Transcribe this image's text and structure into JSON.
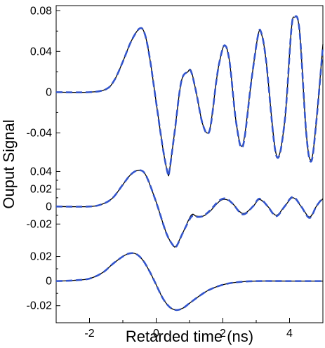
{
  "chart_data": {
    "type": "line",
    "xlabel": "Retarded time (ns)",
    "ylabel": "Ouput Signal",
    "xlim": [
      -3.0,
      5.0
    ],
    "x_ticks": [
      -2,
      0,
      2,
      4
    ],
    "x_tick_labels": [
      "-2",
      "0",
      "2",
      "4"
    ],
    "grid": false,
    "legend": "none",
    "line_styles": {
      "solid": {
        "color": "#000000",
        "dash": "none"
      },
      "dashed": {
        "color": "#3355cc",
        "dash": "dashed"
      }
    },
    "panels": [
      {
        "id": "top",
        "ylim": [
          -0.09,
          0.085
        ],
        "y_ticks": [
          0.08,
          0.04,
          0,
          -0.04
        ],
        "y_tick_labels": [
          "0.08",
          "0.04",
          "0",
          "-0.04"
        ],
        "series": [
          {
            "style": "solid",
            "x": [
              -3.0,
              -2.0,
              -1.5,
              -1.25,
              -1.0,
              -0.75,
              -0.5,
              -0.35,
              -0.2,
              0.0,
              0.2,
              0.35,
              0.4,
              0.55,
              0.75,
              0.95,
              1.05,
              1.2,
              1.4,
              1.6,
              1.8,
              1.9,
              2.05,
              2.2,
              2.4,
              2.6,
              2.85,
              3.05,
              3.15,
              3.3,
              3.6,
              3.85,
              4.05,
              4.15,
              4.3,
              4.5,
              4.65,
              4.8,
              5.0
            ],
            "y": [
              0.0,
              0.0,
              0.003,
              0.012,
              0.03,
              0.05,
              0.0625,
              0.058,
              0.035,
              -0.01,
              -0.055,
              -0.08,
              -0.0765,
              -0.04,
              0.01,
              0.02,
              0.021,
              0.0,
              -0.032,
              -0.037,
              0.01,
              0.03,
              0.046,
              0.03,
              -0.03,
              -0.0515,
              0.01,
              0.055,
              0.058,
              0.03,
              -0.061,
              -0.03,
              0.06,
              0.0735,
              0.06,
              -0.04,
              -0.0665,
              -0.03,
              0.047
            ]
          },
          {
            "style": "dashed",
            "x": [
              -3.0,
              -2.0,
              -1.5,
              -1.25,
              -1.0,
              -0.75,
              -0.5,
              -0.35,
              -0.2,
              0.0,
              0.2,
              0.35,
              0.4,
              0.55,
              0.75,
              0.95,
              1.05,
              1.2,
              1.4,
              1.6,
              1.8,
              1.9,
              2.05,
              2.2,
              2.4,
              2.6,
              2.85,
              3.05,
              3.15,
              3.3,
              3.6,
              3.85,
              4.05,
              4.15,
              4.3,
              4.5,
              4.65,
              4.8,
              5.0
            ],
            "y": [
              0.0,
              0.0,
              0.003,
              0.012,
              0.03,
              0.05,
              0.0625,
              0.058,
              0.035,
              -0.01,
              -0.055,
              -0.08,
              -0.0765,
              -0.04,
              0.01,
              0.02,
              0.02,
              0.0,
              -0.032,
              -0.038,
              0.01,
              0.03,
              0.046,
              0.03,
              -0.03,
              -0.053,
              0.01,
              0.055,
              0.0585,
              0.03,
              -0.062,
              -0.03,
              0.06,
              0.074,
              0.06,
              -0.04,
              -0.068,
              -0.03,
              0.045
            ]
          }
        ]
      },
      {
        "id": "middle",
        "ylim": [
          -0.035,
          0.05
        ],
        "y_ticks": [
          0.04,
          0.02,
          0,
          -0.02
        ],
        "y_tick_labels": [
          "0.04",
          "0.02",
          "0",
          "-0.02"
        ],
        "series": [
          {
            "style": "solid",
            "x": [
              -3.0,
              -2.0,
              -1.6,
              -1.3,
              -1.0,
              -0.75,
              -0.5,
              -0.3,
              0.0,
              0.3,
              0.5,
              0.6,
              0.8,
              1.05,
              1.2,
              1.4,
              1.6,
              1.9,
              2.1,
              2.3,
              2.6,
              2.9,
              3.1,
              3.35,
              3.6,
              3.85,
              4.1,
              4.35,
              4.6,
              4.8,
              5.0
            ],
            "y": [
              0.0,
              0.0,
              0.003,
              0.01,
              0.025,
              0.037,
              0.0415,
              0.035,
              0.005,
              -0.03,
              -0.044,
              -0.045,
              -0.03,
              -0.01,
              -0.011,
              -0.011,
              -0.006,
              0.006,
              0.008,
              0.003,
              -0.008,
              0.0,
              0.008,
              0.0,
              -0.01,
              0.0,
              0.01,
              0.0,
              -0.012,
              0.0,
              0.009
            ]
          },
          {
            "style": "dashed",
            "x": [
              -3.0,
              -2.0,
              -1.6,
              -1.3,
              -1.0,
              -0.75,
              -0.5,
              -0.3,
              0.0,
              0.3,
              0.5,
              0.6,
              0.8,
              1.05,
              1.2,
              1.4,
              1.6,
              1.9,
              2.1,
              2.3,
              2.6,
              2.9,
              3.1,
              3.35,
              3.6,
              3.85,
              4.1,
              4.35,
              4.6,
              4.8,
              5.0
            ],
            "y": [
              0.0,
              0.0,
              0.003,
              0.01,
              0.025,
              0.037,
              0.0415,
              0.035,
              0.005,
              -0.03,
              -0.044,
              -0.046,
              -0.03,
              -0.012,
              -0.012,
              -0.011,
              -0.005,
              0.007,
              0.009,
              0.003,
              -0.009,
              0.0,
              0.009,
              0.0,
              -0.011,
              0.0,
              0.011,
              0.0,
              -0.013,
              0.0,
              0.01
            ]
          }
        ]
      },
      {
        "id": "bottom",
        "ylim": [
          -0.027,
          0.03
        ],
        "y_ticks": [
          0.02,
          0,
          -0.02
        ],
        "y_tick_labels": [
          "0.02",
          "0",
          "-0.02"
        ],
        "series": [
          {
            "style": "solid",
            "x": [
              -3.0,
              -2.5,
              -2.0,
              -1.6,
              -1.3,
              -1.0,
              -0.8,
              -0.6,
              -0.4,
              -0.2,
              0.0,
              0.2,
              0.4,
              0.6,
              0.8,
              1.0,
              1.3,
              1.6,
              2.0,
              2.4,
              3.0,
              4.0,
              5.0
            ],
            "y": [
              0.0,
              0.0005,
              0.002,
              0.007,
              0.014,
              0.02,
              0.0225,
              0.022,
              0.017,
              0.008,
              -0.003,
              -0.014,
              -0.021,
              -0.0235,
              -0.022,
              -0.018,
              -0.012,
              -0.007,
              -0.003,
              -0.001,
              0.0,
              0.0,
              0.0
            ]
          },
          {
            "style": "dashed",
            "x": [
              -3.0,
              -2.5,
              -2.0,
              -1.6,
              -1.3,
              -1.0,
              -0.8,
              -0.6,
              -0.4,
              -0.2,
              0.0,
              0.2,
              0.4,
              0.6,
              0.8,
              1.0,
              1.3,
              1.6,
              2.0,
              2.4,
              3.0,
              4.0,
              5.0
            ],
            "y": [
              0.0,
              0.0005,
              0.002,
              0.007,
              0.014,
              0.02,
              0.0225,
              0.022,
              0.017,
              0.008,
              -0.003,
              -0.014,
              -0.021,
              -0.0235,
              -0.022,
              -0.018,
              -0.012,
              -0.007,
              -0.003,
              -0.001,
              0.0,
              0.0,
              0.0
            ]
          }
        ]
      }
    ]
  }
}
